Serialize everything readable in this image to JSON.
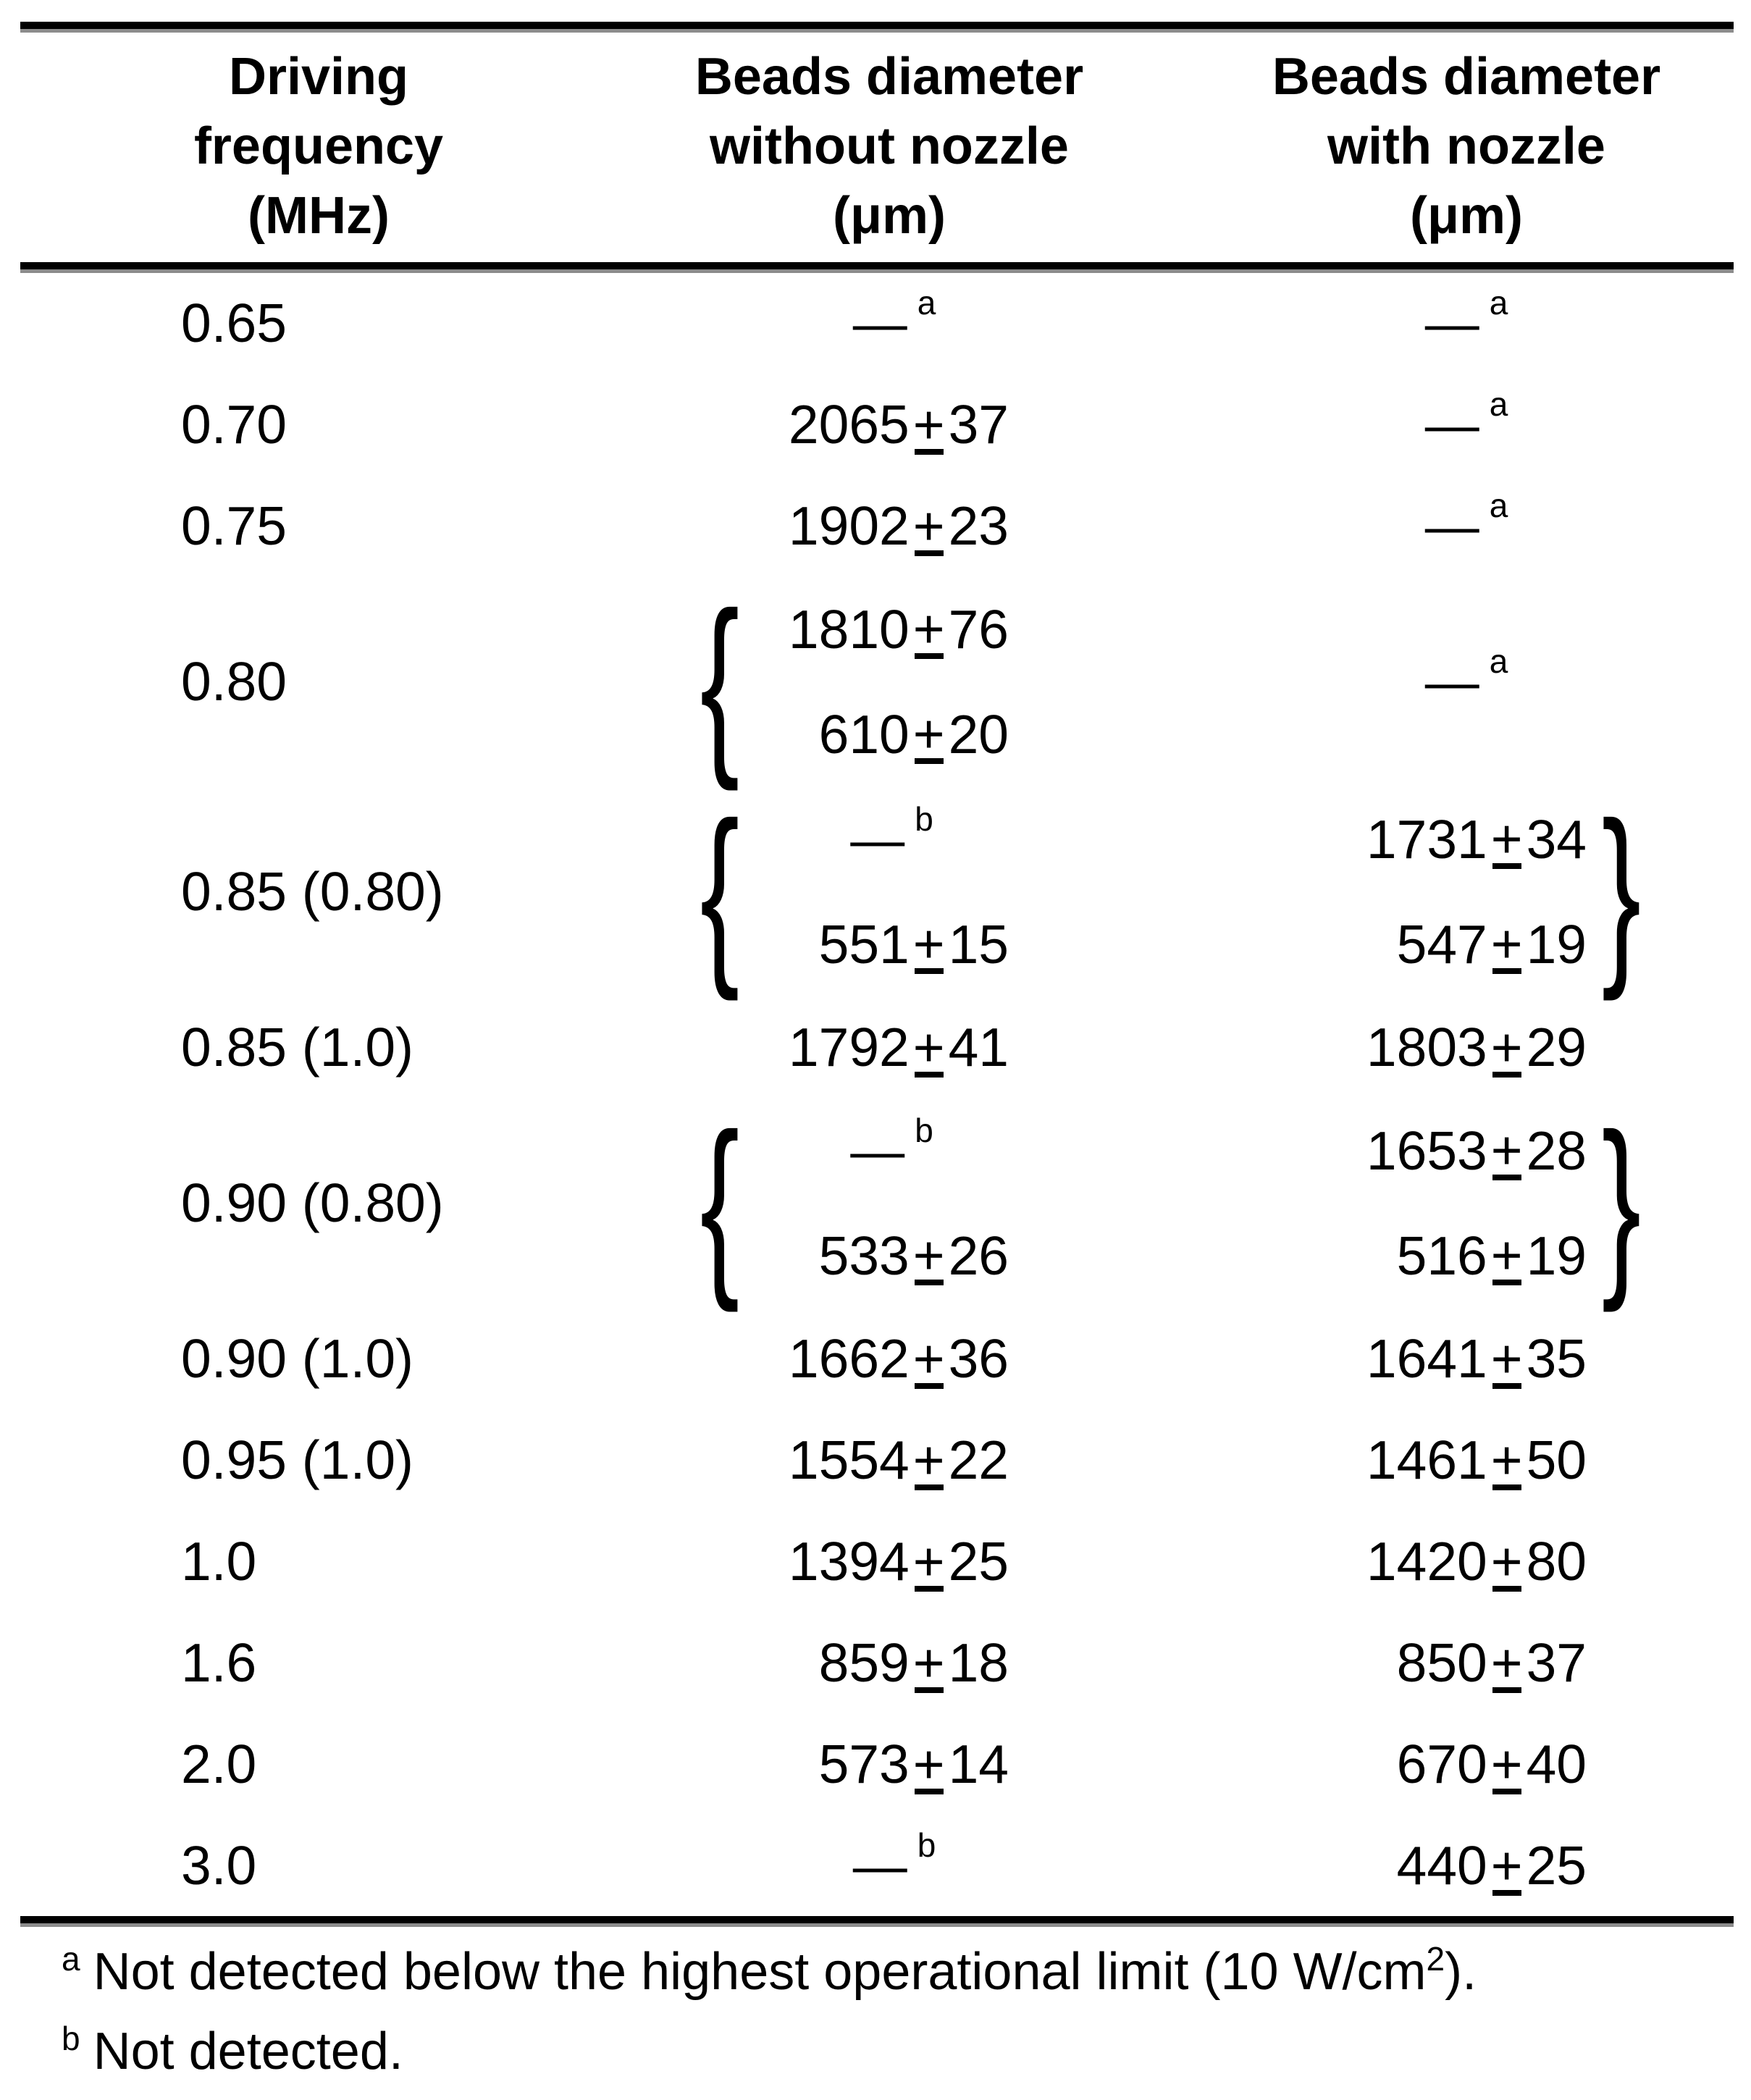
{
  "table": {
    "headers": {
      "col1": {
        "line1": "Driving",
        "line2": "frequency",
        "line3": "(MHz)"
      },
      "col2": {
        "line1": "Beads diameter",
        "line2": "without nozzle",
        "line3": "(μm)"
      },
      "col3": {
        "line1": "Beads diameter",
        "line2": "with nozzle",
        "line3": "(μm)"
      }
    },
    "symbols": {
      "plus": "+",
      "dash": "—",
      "brace_left": "{",
      "brace_right": "}"
    },
    "rows": [
      {
        "freq": "0.65",
        "without": {
          "note": "a"
        },
        "with": {
          "note": "a"
        }
      },
      {
        "freq": "0.70",
        "without": {
          "v": "2065",
          "e": "37"
        },
        "with": {
          "note": "a"
        }
      },
      {
        "freq": "0.75",
        "without": {
          "v": "1902",
          "e": "23"
        },
        "with": {
          "note": "a"
        }
      },
      {
        "freq": "0.80",
        "without": {
          "top": {
            "v": "1810",
            "e": "76"
          },
          "bottom": {
            "v": "610",
            "e": "20"
          }
        },
        "with": {
          "note": "a"
        }
      },
      {
        "freq": "0.85 (0.80)",
        "without": {
          "top": {
            "note": "b"
          },
          "bottom": {
            "v": "551",
            "e": "15"
          }
        },
        "with": {
          "top": {
            "v": "1731",
            "e": "34"
          },
          "bottom": {
            "v": "547",
            "e": "19"
          }
        }
      },
      {
        "freq": "0.85 (1.0)",
        "without": {
          "v": "1792",
          "e": "41"
        },
        "with": {
          "v": "1803",
          "e": "29"
        }
      },
      {
        "freq": "0.90 (0.80)",
        "without": {
          "top": {
            "note": "b"
          },
          "bottom": {
            "v": "533",
            "e": "26"
          }
        },
        "with": {
          "top": {
            "v": "1653",
            "e": "28"
          },
          "bottom": {
            "v": "516",
            "e": "19"
          }
        }
      },
      {
        "freq": "0.90 (1.0)",
        "without": {
          "v": "1662",
          "e": "36"
        },
        "with": {
          "v": "1641",
          "e": "35"
        }
      },
      {
        "freq": "0.95 (1.0)",
        "without": {
          "v": "1554",
          "e": "22"
        },
        "with": {
          "v": "1461",
          "e": "50"
        }
      },
      {
        "freq": "1.0",
        "without": {
          "v": "1394",
          "e": "25"
        },
        "with": {
          "v": "1420",
          "e": "80"
        }
      },
      {
        "freq": "1.6",
        "without": {
          "v": "859",
          "e": "18"
        },
        "with": {
          "v": "850",
          "e": "37"
        }
      },
      {
        "freq": "2.0",
        "without": {
          "v": "573",
          "e": "14"
        },
        "with": {
          "v": "670",
          "e": "40"
        }
      },
      {
        "freq": "3.0",
        "without": {
          "note": "b"
        },
        "with": {
          "v": "440",
          "e": "25"
        }
      }
    ],
    "footnotes": {
      "a": {
        "marker": "a",
        "pre": "Not detected below the highest operational limit (10 W/cm",
        "sup": "2",
        "post": ")."
      },
      "b": {
        "marker": "b",
        "text": "Not detected."
      }
    }
  }
}
